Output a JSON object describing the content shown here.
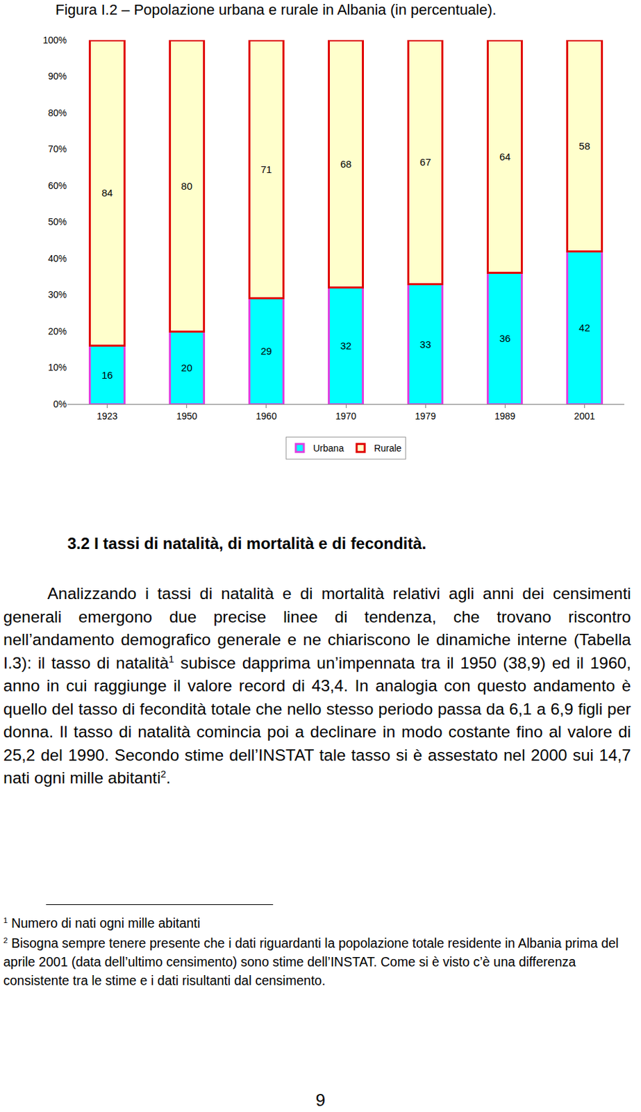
{
  "caption": "Figura I.2 – Popolazione urbana e rurale in Albania (in percentuale).",
  "chart_data": {
    "type": "bar",
    "stacked": true,
    "data_labels": true,
    "grid": false,
    "legend": "bottom",
    "categories": [
      "1923",
      "1950",
      "1960",
      "1970",
      "1979",
      "1989",
      "2001"
    ],
    "series": [
      {
        "name": "Urbana",
        "color": "#00FFFF",
        "values": [
          16,
          20,
          29,
          32,
          33,
          36,
          42
        ]
      },
      {
        "name": "Rurale",
        "color": "#FFFFCC",
        "values": [
          84,
          80,
          71,
          68,
          67,
          64,
          58
        ]
      }
    ],
    "ylim": [
      0,
      100
    ],
    "yticks": [
      {
        "value": 0,
        "label": "0%"
      },
      {
        "value": 10,
        "label": "10%"
      },
      {
        "value": 20,
        "label": "20%"
      },
      {
        "value": 30,
        "label": "30%"
      },
      {
        "value": 40,
        "label": "40%"
      },
      {
        "value": 50,
        "label": "50%"
      },
      {
        "value": 60,
        "label": "60%"
      },
      {
        "value": 70,
        "label": "70%"
      },
      {
        "value": 80,
        "label": "80%"
      },
      {
        "value": 90,
        "label": "90%"
      },
      {
        "value": 100,
        "label": "100%"
      }
    ]
  },
  "heading": "3.2 I tassi di natalità, di mortalità e di fecondità.",
  "paragraph": [
    {
      "text": "Analizzando i tassi di natalità e di mortalità relativi agli anni dei censimenti generali emergono due precise linee di tendenza, che trovano riscontro nell’andamento demografico generale e ne chiariscono le dinamiche interne (Tabella I.3): il tasso di natalità"
    },
    {
      "footnote_ref": "1"
    },
    {
      "text": " subisce dapprima un’impennata tra il 1950 (38,9) ed il 1960, anno in cui raggiunge il valore record di 43,4. In analogia con questo andamento è quello del tasso di fecondità totale che nello stesso periodo passa da 6,1 a 6,9 figli per donna. Il tasso di natalità comincia poi a declinare in modo costante fino al valore di 25,2 del 1990. Secondo stime dell’INSTAT tale tasso si è assestato nel 2000 sui 14,7 nati ogni mille abitanti"
    },
    {
      "footnote_ref": "2"
    },
    {
      "text": "."
    }
  ],
  "footnotes": [
    {
      "mark": "1",
      "text": " Numero di nati ogni mille abitanti"
    },
    {
      "mark": "2",
      "text": " Bisogna sempre tenere presente che i dati riguardanti la popolazione totale residente in Albania prima del aprile 2001 (data dell’ultimo censimento) sono stime dell’INSTAT. Come si è visto c’è una differenza consistente tra le stime e i dati risultanti dal censimento."
    }
  ],
  "page_number": "9"
}
